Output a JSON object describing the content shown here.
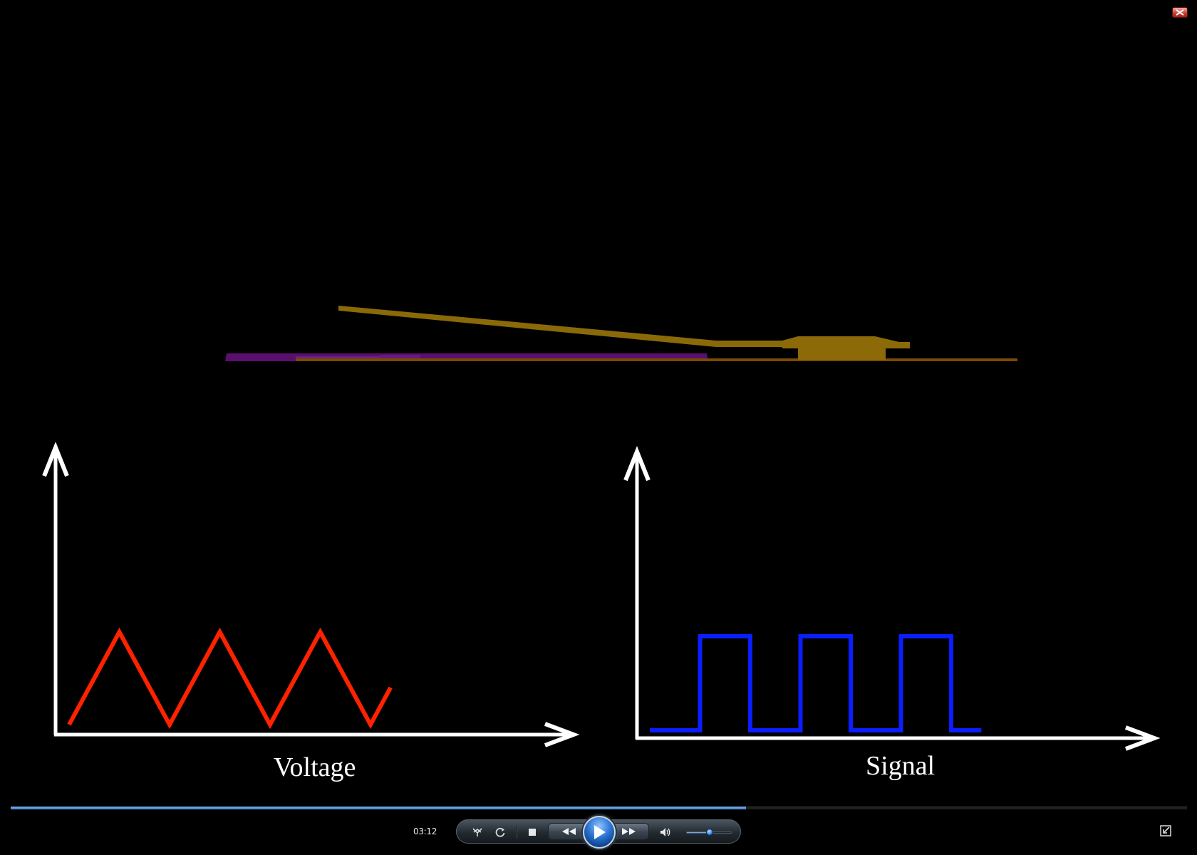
{
  "player": {
    "time_display": "03:12",
    "seek_progress": 0.625,
    "volume_level": 0.5,
    "colors": {
      "accent": "#3f7fc8",
      "background": "#000000"
    }
  },
  "icons": {
    "close": "close-icon",
    "switch_to_library": "switch-to-library-icon",
    "repeat": "repeat-icon",
    "stop": "stop-icon",
    "rewind": "rewind-icon",
    "play": "play-icon",
    "fast_forward": "fast-forward-icon",
    "volume": "volume-icon",
    "fullscreen": "exit-fullscreen-icon"
  },
  "video": {
    "left_chart": {
      "label": "Voltage",
      "waveform": "triangle",
      "color": "#ff2200",
      "chart_data": {
        "type": "line",
        "title": "",
        "xlabel": "Voltage",
        "ylabel": "",
        "x": [
          0,
          0.5,
          1,
          1.5,
          2,
          2.5,
          3,
          3.2
        ],
        "y": [
          0,
          1,
          0,
          1,
          0,
          1,
          0,
          0.4
        ]
      }
    },
    "right_chart": {
      "label": "Signal",
      "waveform": "square",
      "color": "#0a1eff",
      "chart_data": {
        "type": "line",
        "title": "",
        "xlabel": "Signal",
        "ylabel": "",
        "x": [
          0,
          0.5,
          0.5,
          1,
          1,
          1.5,
          1.5,
          2,
          2,
          2.5,
          2.5,
          3,
          3,
          3.3
        ],
        "y": [
          0,
          0,
          1,
          1,
          0,
          0,
          1,
          1,
          0,
          0,
          1,
          1,
          0,
          0
        ]
      }
    },
    "colors": {
      "gold_lever": "#8a6a08",
      "gold_base": "#8c6a07",
      "purple_strip": "#5a0f6e",
      "brown_line": "#7a4a06"
    }
  }
}
